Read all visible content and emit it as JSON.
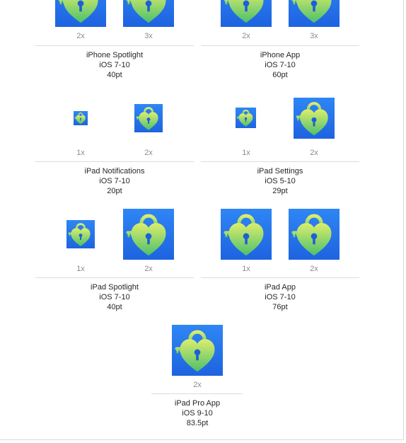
{
  "groups": [
    {
      "title": "iPhone Spotlight",
      "ios": "iOS 7-10",
      "size": "40pt",
      "slots": [
        {
          "scale": "2x",
          "icon": "heart-padlock-key-icon"
        },
        {
          "scale": "3x",
          "icon": "heart-padlock-key-icon"
        }
      ]
    },
    {
      "title": "iPhone App",
      "ios": "iOS 7-10",
      "size": "60pt",
      "slots": [
        {
          "scale": "2x",
          "icon": "heart-padlock-key-icon"
        },
        {
          "scale": "3x",
          "icon": "heart-padlock-key-icon"
        }
      ]
    },
    {
      "title": "iPad Notifications",
      "ios": "iOS 7-10",
      "size": "20pt",
      "slots": [
        {
          "scale": "1x",
          "icon": "heart-padlock-key-icon"
        },
        {
          "scale": "2x",
          "icon": "heart-padlock-key-icon"
        }
      ]
    },
    {
      "title": "iPad Settings",
      "ios": "iOS 5-10",
      "size": "29pt",
      "slots": [
        {
          "scale": "1x",
          "icon": "heart-padlock-key-icon"
        },
        {
          "scale": "2x",
          "icon": "heart-padlock-key-icon"
        }
      ]
    },
    {
      "title": "iPad Spotlight",
      "ios": "iOS 7-10",
      "size": "40pt",
      "slots": [
        {
          "scale": "1x",
          "icon": "heart-padlock-key-icon"
        },
        {
          "scale": "2x",
          "icon": "heart-padlock-key-icon"
        }
      ]
    },
    {
      "title": "iPad App",
      "ios": "iOS 7-10",
      "size": "76pt",
      "slots": [
        {
          "scale": "1x",
          "icon": "heart-padlock-key-icon"
        },
        {
          "scale": "2x",
          "icon": "heart-padlock-key-icon"
        }
      ]
    },
    {
      "title": "iPad Pro App",
      "ios": "iOS 9-10",
      "size": "83.5pt",
      "slots": [
        {
          "scale": "2x",
          "icon": "heart-padlock-key-icon"
        }
      ]
    }
  ],
  "colors": {
    "icon_background": "#2563eb",
    "heart_light": "#d9ec6a",
    "heart_dark": "#4fc06a",
    "keyhole": "#1e5fd8"
  }
}
